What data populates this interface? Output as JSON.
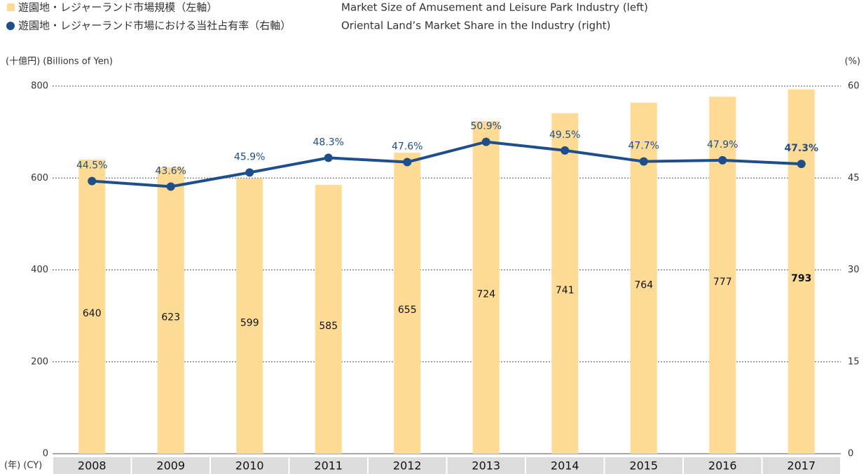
{
  "chart_data": {
    "type": "bar-line",
    "categories": [
      "2008",
      "2009",
      "2010",
      "2011",
      "2012",
      "2013",
      "2014",
      "2015",
      "2016",
      "2017"
    ],
    "series": [
      {
        "name": "遊園地・レジャーランド市場規模（左軸）",
        "description": "Market Size of Amusement and Leisure Park Industry (left)",
        "type": "bar",
        "color": "#fddb94",
        "values": [
          640,
          623,
          599,
          585,
          655,
          724,
          741,
          764,
          777,
          793
        ]
      },
      {
        "name": "遊園地・レジャーランド市場における当社占有率（右軸）",
        "description": "Oriental Land’s Market Share in the Industry (right)",
        "type": "line",
        "axis": "y2",
        "color": "#1f4e8c",
        "values": [
          44.5,
          43.6,
          45.9,
          48.3,
          47.6,
          50.9,
          49.5,
          47.7,
          47.9,
          47.3
        ],
        "value_labels": [
          "44.5%",
          "43.6%",
          "45.9%",
          "48.3%",
          "47.6%",
          "50.9%",
          "49.5%",
          "47.7%",
          "47.9%",
          "47.3%"
        ]
      }
    ],
    "ylabel": "(十億円) (Billions of Yen)",
    "y2label": "(%)",
    "xlabel": "(年) (CY)",
    "ylim": [
      0,
      800
    ],
    "yticks": [
      0,
      200,
      400,
      600,
      800
    ],
    "y2lim": [
      0,
      60
    ],
    "y2ticks": [
      0,
      15,
      30,
      45,
      60
    ],
    "grid": true
  }
}
